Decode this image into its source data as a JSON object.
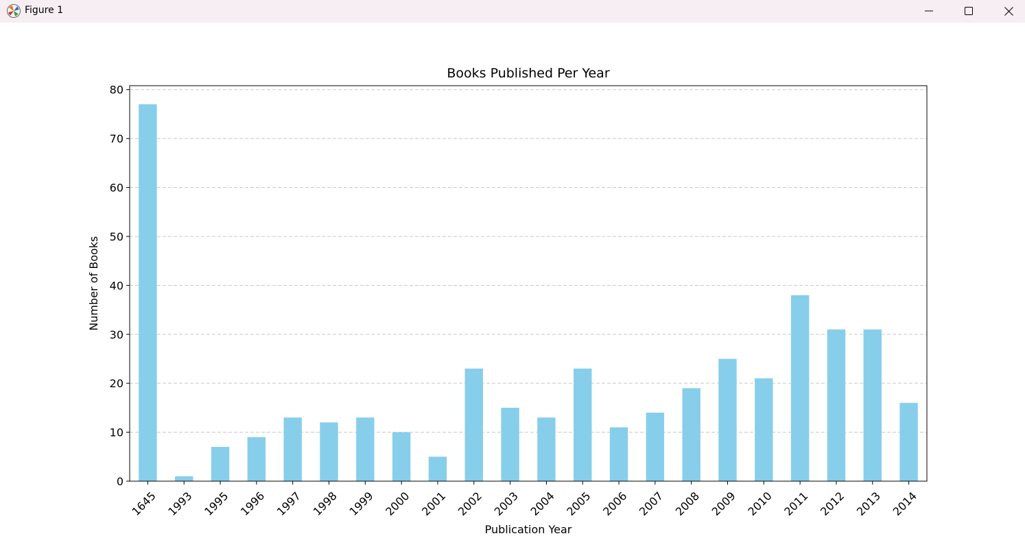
{
  "window": {
    "title": "Figure 1",
    "icons": [
      "matplotlib-icon",
      "minimize-icon",
      "maximize-icon",
      "close-icon"
    ]
  },
  "chart_data": {
    "type": "bar",
    "title": "Books Published Per Year",
    "xlabel": "Publication Year",
    "ylabel": "Number of Books",
    "categories": [
      "1645",
      "1993",
      "1995",
      "1996",
      "1997",
      "1998",
      "1999",
      "2000",
      "2001",
      "2002",
      "2003",
      "2004",
      "2005",
      "2006",
      "2007",
      "2008",
      "2009",
      "2010",
      "2011",
      "2012",
      "2013",
      "2014"
    ],
    "values": [
      77,
      1,
      7,
      9,
      13,
      12,
      13,
      10,
      5,
      23,
      15,
      13,
      23,
      11,
      14,
      19,
      25,
      21,
      38,
      31,
      31,
      16
    ],
    "ylim": [
      0,
      80.8
    ],
    "yticks": [
      0,
      10,
      20,
      30,
      40,
      50,
      60,
      70,
      80
    ],
    "grid": "y-dashed",
    "bar_color": "#87ceeb",
    "grid_color": "#c8c8c8"
  }
}
